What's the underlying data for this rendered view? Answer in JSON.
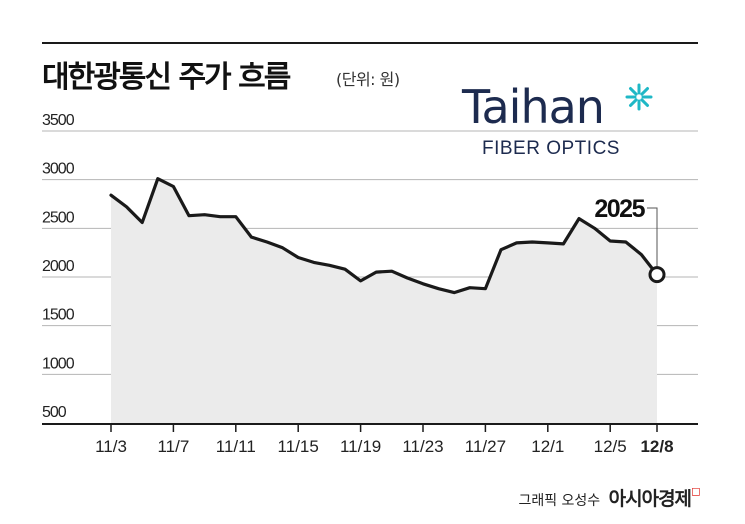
{
  "header": {
    "title": "대한광통신 주가 흐름",
    "unit": "(단위: 원)"
  },
  "logo": {
    "name": "Taihan",
    "sub": "FIBER OPTICS",
    "color": "#1d2b4f",
    "star_color": "#1fb8c6"
  },
  "credit": {
    "text": "그래픽 오성수",
    "brand": "아시아경제",
    "brand_mark_color": "#e0302a"
  },
  "chart_data": {
    "type": "area",
    "title": "대한광통신 주가 흐름",
    "ylabel": "",
    "xlabel": "",
    "ylim": [
      500,
      3500
    ],
    "yticks": [
      3500,
      3000,
      2500,
      2000,
      1500,
      1000,
      500
    ],
    "grid": true,
    "x_tick_labels": [
      "11/3",
      "11/7",
      "11/11",
      "11/15",
      "11/19",
      "11/23",
      "11/27",
      "12/1",
      "12/5",
      "12/8"
    ],
    "x": [
      "11/3",
      "11/4",
      "11/5",
      "11/6",
      "11/7",
      "11/8",
      "11/9",
      "11/10",
      "11/11",
      "11/12",
      "11/13",
      "11/14",
      "11/15",
      "11/16",
      "11/17",
      "11/18",
      "11/19",
      "11/20",
      "11/21",
      "11/22",
      "11/23",
      "11/24",
      "11/25",
      "11/26",
      "11/27",
      "11/28",
      "11/29",
      "11/30",
      "12/1",
      "12/2",
      "12/3",
      "12/4",
      "12/5",
      "12/6",
      "12/7",
      "12/8"
    ],
    "series": [
      {
        "values": [
          2840,
          2720,
          2560,
          3010,
          2930,
          2630,
          2640,
          2620,
          2620,
          2410,
          2360,
          2300,
          2200,
          2150,
          2120,
          2080,
          1960,
          2050,
          2060,
          1990,
          1930,
          1880,
          1840,
          1890,
          1880,
          2280,
          2350,
          2360,
          2350,
          2340,
          2600,
          2500,
          2370,
          2360,
          2230,
          2025
        ]
      }
    ],
    "highlight": {
      "x": "12/8",
      "value": 2025,
      "label": "2025"
    },
    "line_color": "#1a1a1a",
    "fill_color": "#ebebeb",
    "grid_color": "#b5b5b5"
  }
}
